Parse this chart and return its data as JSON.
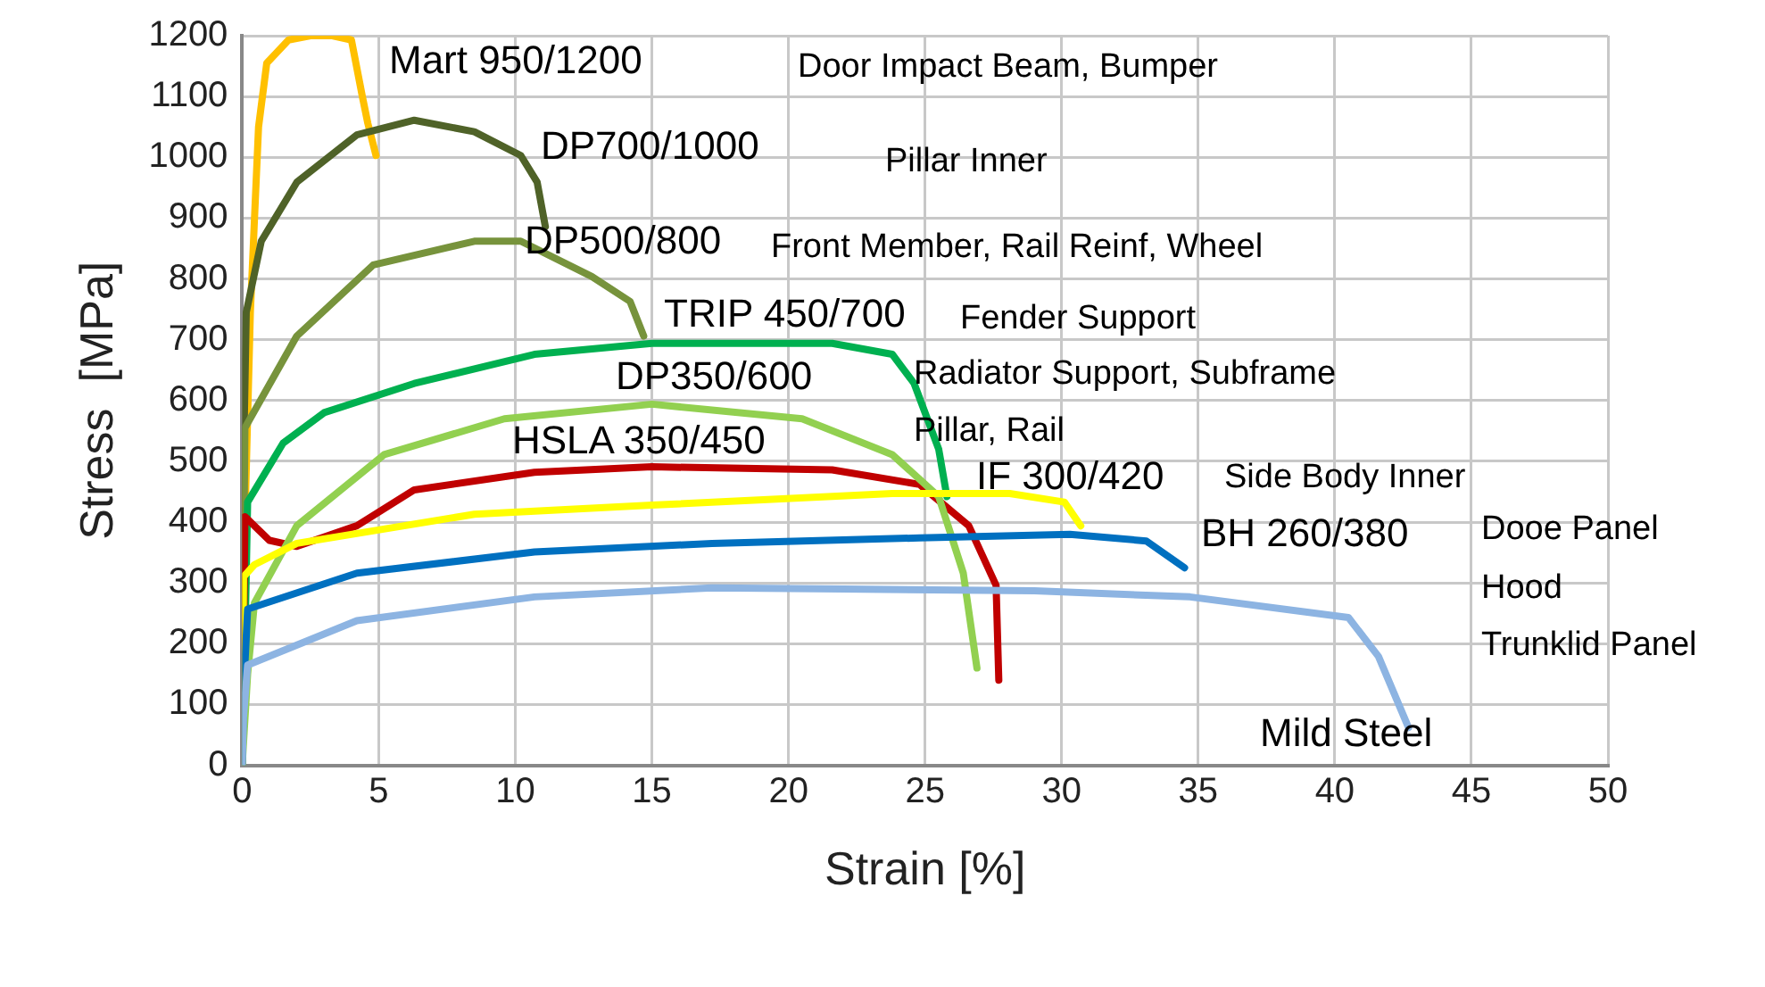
{
  "chart_data": {
    "type": "line",
    "xlabel": "Strain [%]",
    "ylabel": "Stress  [MPa]",
    "xlim": [
      0,
      50
    ],
    "xticks": [
      0,
      5,
      10,
      15,
      20,
      25,
      30,
      35,
      40,
      45,
      50
    ],
    "ylim": [
      0,
      1200
    ],
    "yticks": [
      0,
      100,
      200,
      300,
      400,
      500,
      600,
      700,
      800,
      900,
      1000,
      1100,
      1200
    ],
    "grid": true,
    "legend": false,
    "marker": "none",
    "line_style": "solid",
    "series": [
      {
        "name": "Mild Steel",
        "color": "#8db4e2",
        "x": [
          0,
          0.05,
          0.2,
          4.2,
          10.7,
          17.2,
          22,
          29,
          34.7,
          40.5,
          41.6,
          42.7
        ],
        "values": [
          0,
          80,
          165,
          238,
          277,
          292,
          290,
          287,
          277,
          243,
          179,
          62
        ]
      },
      {
        "name": "BH 260/380",
        "color": "#0070c0",
        "x": [
          0,
          0.05,
          0.2,
          4.2,
          10.7,
          17.2,
          24.8,
          30.3,
          33.1,
          34.5
        ],
        "values": [
          0,
          120,
          257,
          316,
          351,
          365,
          374,
          380,
          369,
          325
        ]
      },
      {
        "name": "IF 300/420",
        "color": "#ffff00",
        "x": [
          0,
          0.05,
          0.45,
          2,
          8.5,
          15,
          23.8,
          28.1,
          30.1,
          30.7
        ],
        "values": [
          0,
          310,
          330,
          365,
          413,
          428,
          447,
          447,
          433,
          394
        ]
      },
      {
        "name": "DP350/600",
        "color": "#92d050",
        "x": [
          0,
          0.2,
          0.45,
          2,
          5.2,
          9.6,
          15,
          20.5,
          23.8,
          25.5,
          26.4,
          26.9
        ],
        "values": [
          0,
          150,
          267,
          394,
          511,
          570,
          594,
          570,
          511,
          442,
          316,
          160
        ]
      },
      {
        "name": "HSLA 350/450",
        "color": "#c00000",
        "x": [
          0,
          0.05,
          0.1,
          1,
          2,
          4.2,
          6.3,
          10.7,
          15,
          21.6,
          24.8,
          26.6,
          27.6,
          27.7
        ],
        "values": [
          0,
          200,
          409,
          370,
          360,
          394,
          453,
          482,
          491,
          486,
          462,
          394,
          296,
          140
        ]
      },
      {
        "name": "TRIP 450/700",
        "color": "#00b050",
        "x": [
          0,
          0.1,
          0.2,
          1.5,
          3,
          6.3,
          10.7,
          15,
          21.6,
          23.8,
          24.6,
          25.5,
          25.8
        ],
        "values": [
          0,
          200,
          433,
          530,
          580,
          628,
          676,
          694,
          694,
          676,
          628,
          520,
          442
        ]
      },
      {
        "name": "DP500/800",
        "color": "#77933c",
        "x": [
          0,
          0.05,
          0.1,
          2,
          4.8,
          8.5,
          10.2,
          12.8,
          14.2,
          14.7
        ],
        "values": [
          0,
          300,
          555,
          706,
          823,
          862,
          862,
          804,
          763,
          706
        ]
      },
      {
        "name": "DP700/1000",
        "color": "#4f6228",
        "x": [
          0,
          0.05,
          0.15,
          0.7,
          2,
          4.2,
          6.3,
          8.5,
          10.2,
          10.8,
          11.1
        ],
        "values": [
          0,
          500,
          745,
          862,
          959,
          1037,
          1061,
          1042,
          1003,
          959,
          886
        ]
      },
      {
        "name": "Mart 950/1200",
        "color": "#ffc000",
        "x": [
          0,
          0.1,
          0.3,
          0.6,
          0.9,
          1.7,
          2.5,
          3.3,
          4,
          4.4,
          4.6,
          4.9
        ],
        "values": [
          0,
          400,
          745,
          1050,
          1155,
          1193,
          1200,
          1200,
          1193,
          1100,
          1056,
          1003
        ]
      }
    ],
    "annotations": [
      "Door Impact Beam, Bumper",
      "Pillar Inner",
      "Front Member, Rail Reinf, Wheel",
      "Fender Support",
      "Radiator Support, Subframe",
      "Pillar, Rail",
      "Side Body Inner",
      "Dooe Panel",
      "Hood",
      "Trunklid Panel"
    ]
  }
}
